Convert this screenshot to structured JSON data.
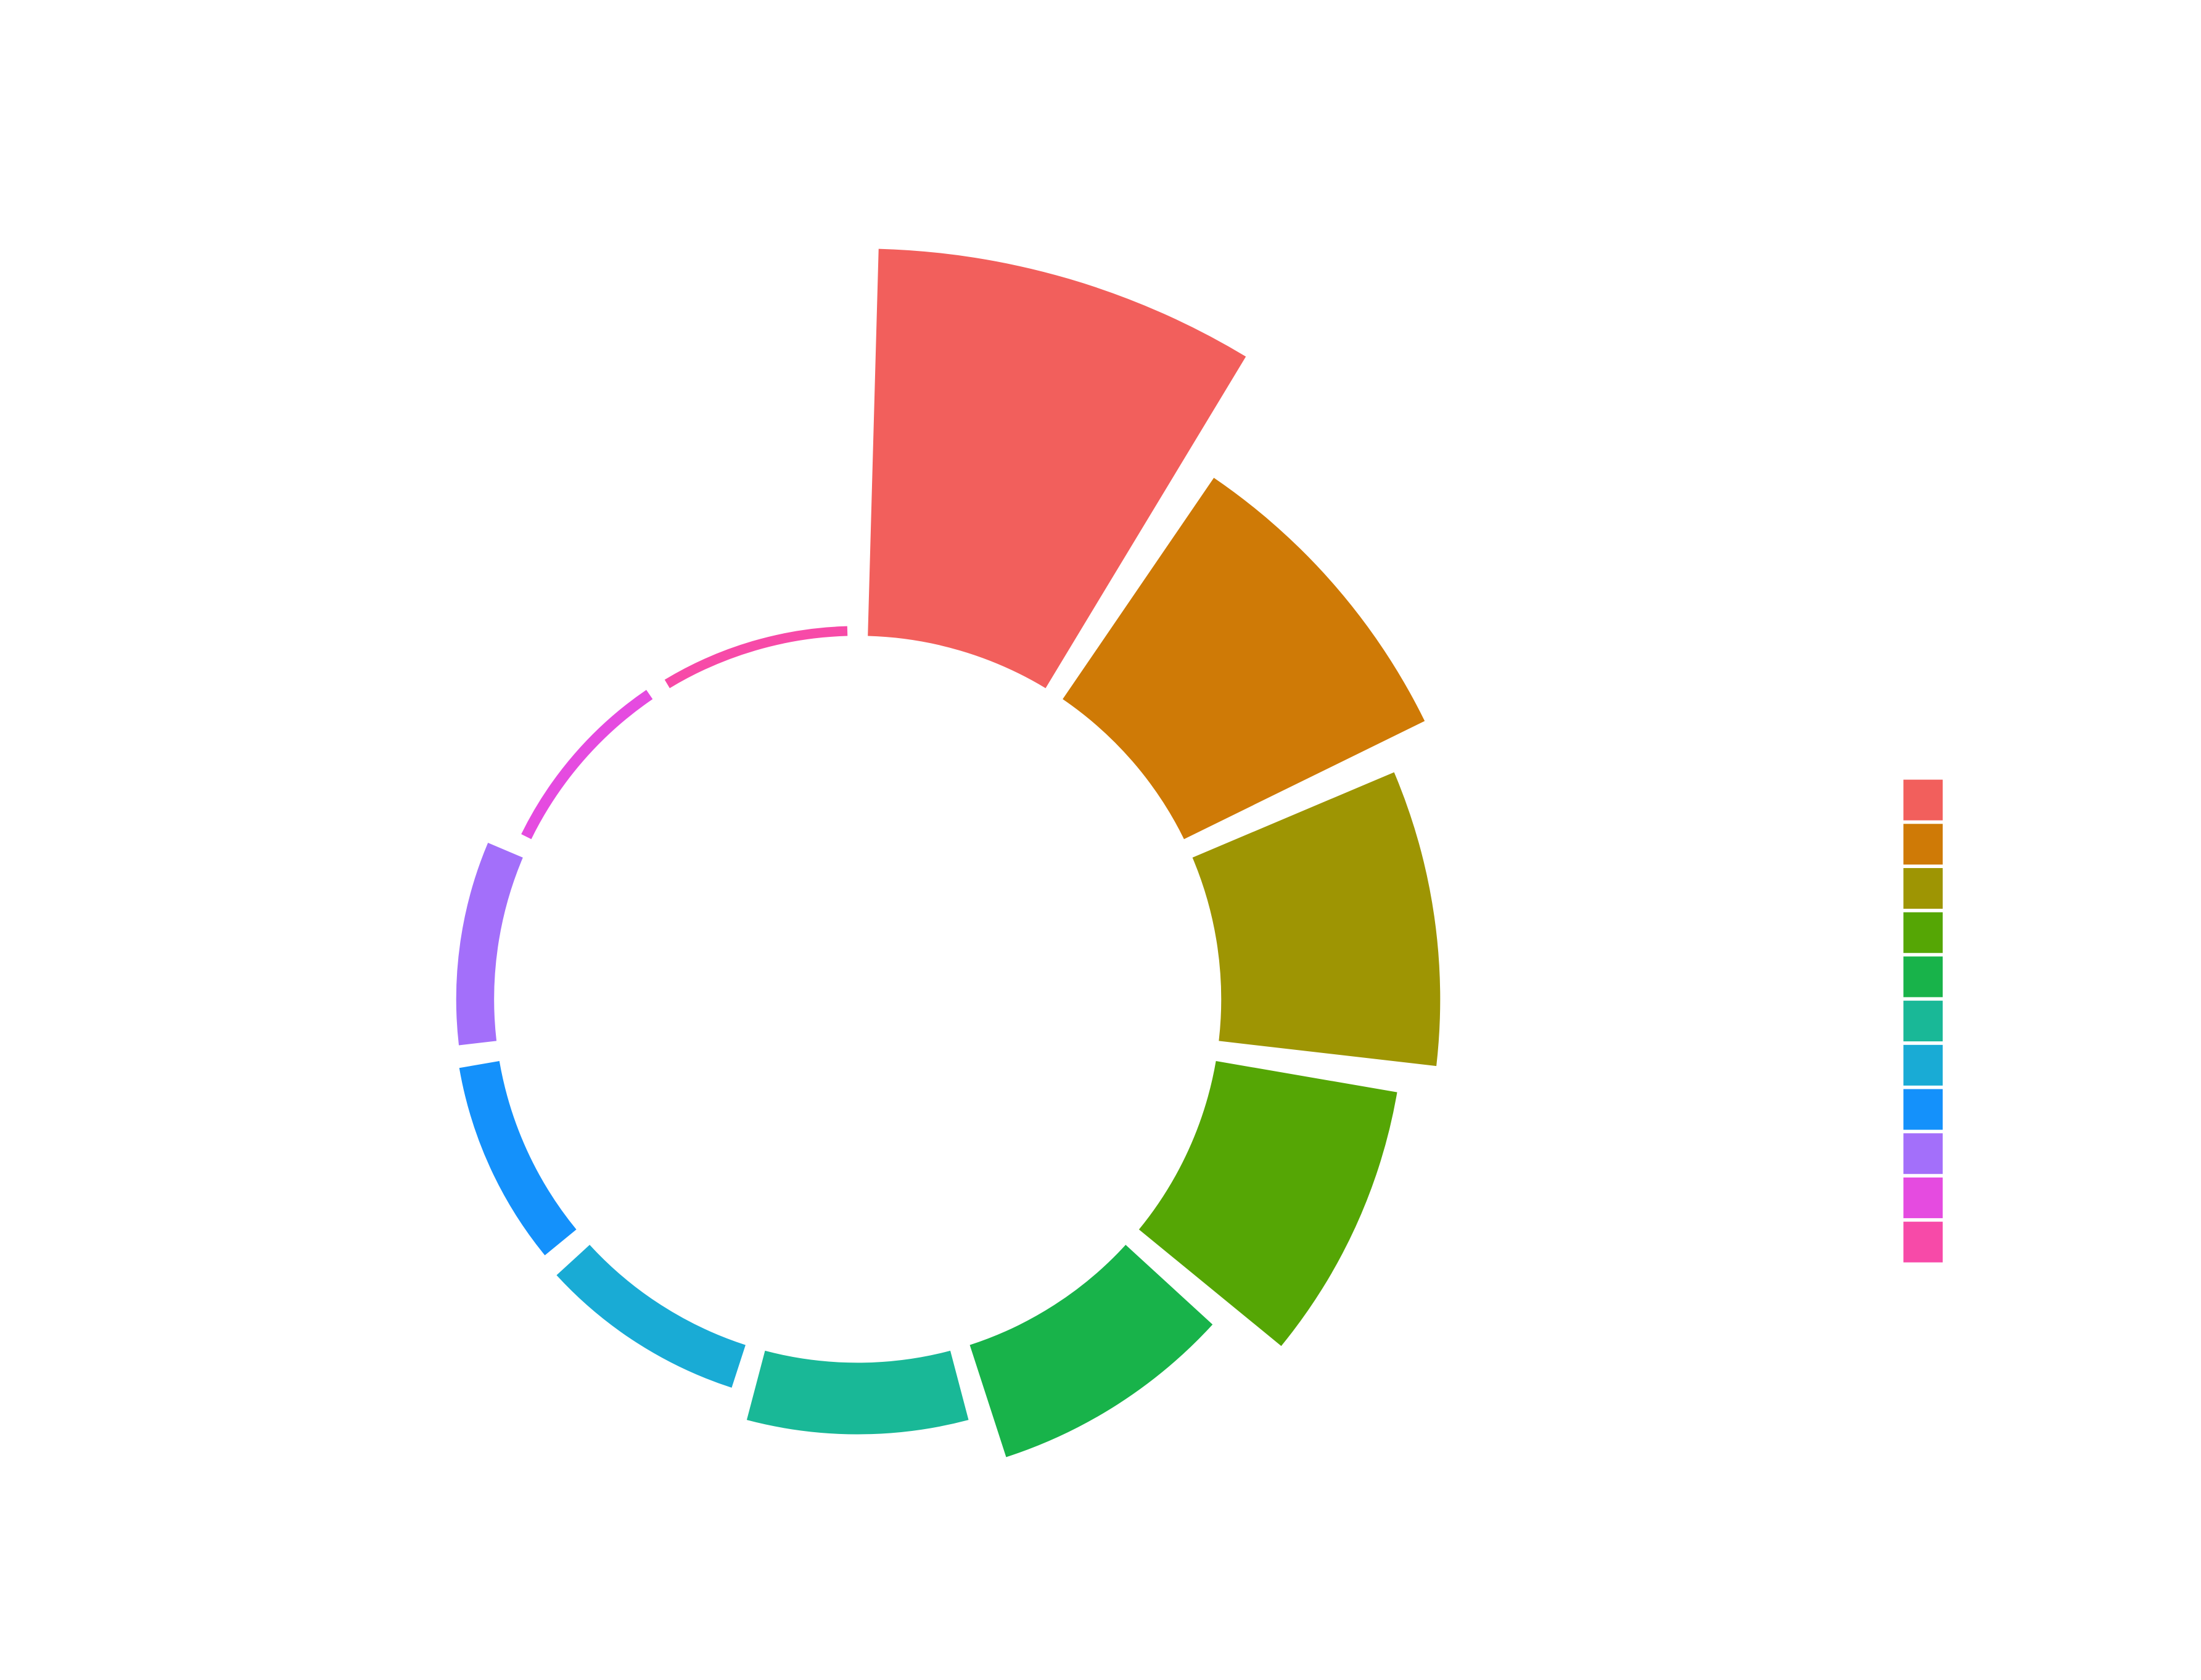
{
  "chart_data": {
    "type": "polar",
    "categories": [
      null,
      null,
      null,
      null,
      null,
      null,
      null,
      null,
      null,
      null,
      null
    ],
    "values": [
      276,
      191,
      156,
      131,
      84,
      51,
      32,
      29,
      27,
      8,
      7
    ],
    "colors": [
      "#f25f5c",
      "#cf7a06",
      "#9e9503",
      "#55a605",
      "#18b34a",
      "#19b897",
      "#19abd5",
      "#1491fb",
      "#a36ffa",
      "#e54be0",
      "#f74aa8"
    ]
  }
}
